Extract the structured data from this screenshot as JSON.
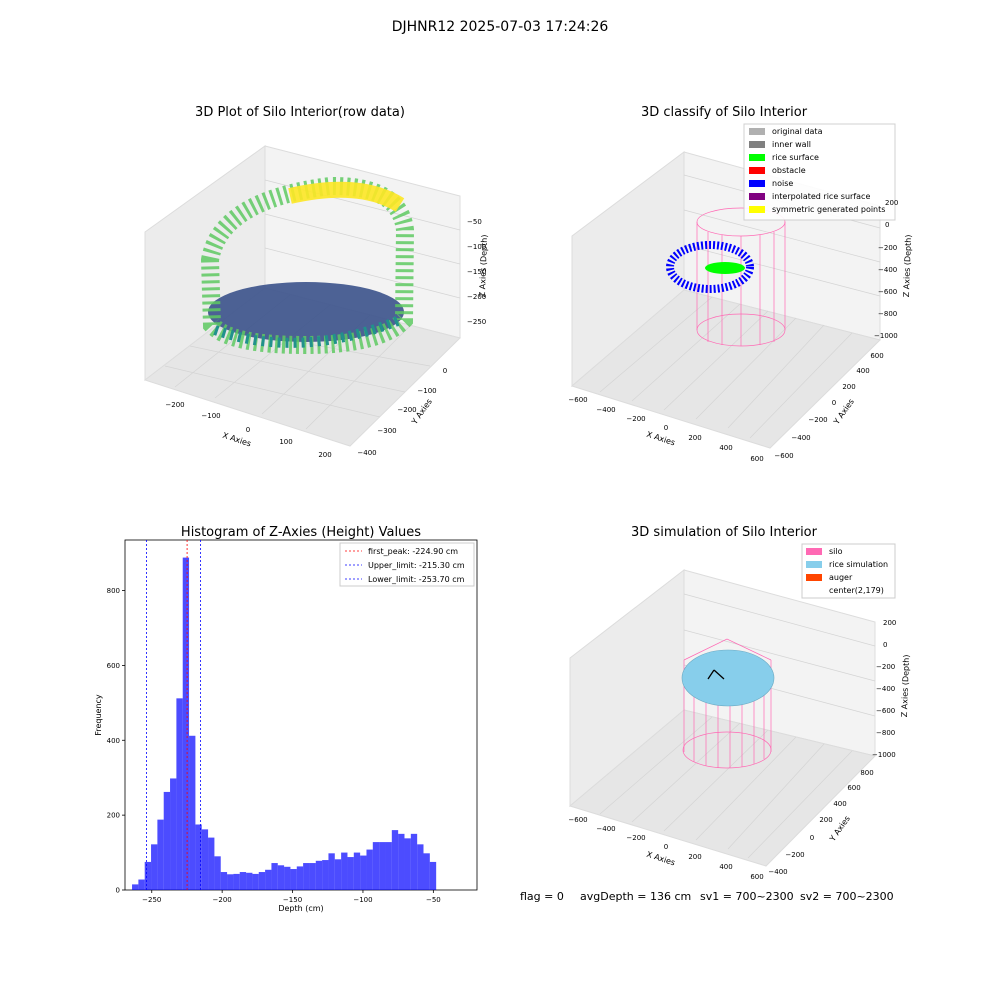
{
  "suptitle": "DJHNR12 2025-07-03 17:24:26",
  "status_line": {
    "flag": "flag = 0",
    "avg": "avgDepth = 136 cm",
    "sv1": "sv1 = 700~2300",
    "sv2": "sv2 = 700~2300"
  },
  "chart_data": [
    {
      "type": "scatter",
      "title": "3D Plot of Silo Interior(row data)",
      "xlabel": "X Axies",
      "ylabel": "Y Axies",
      "zlabel": "Z Axies (Depth)",
      "x_ticks": [
        "−200",
        "−100",
        "0",
        "100",
        "200"
      ],
      "y_ticks": [
        "−400",
        "−300",
        "−200",
        "−100",
        "0"
      ],
      "z_ticks": [
        "−50",
        "−100",
        "−150",
        "−200",
        "−250"
      ],
      "colormap": "viridis"
    },
    {
      "type": "scatter",
      "title": "3D classify of Silo Interior",
      "xlabel": "X Axies",
      "ylabel": "Y Axies",
      "zlabel": "Z Axies (Depth)",
      "x_ticks": [
        "−600",
        "−400",
        "−200",
        "0",
        "200",
        "400",
        "600"
      ],
      "y_ticks": [
        "−600",
        "−400",
        "−200",
        "0",
        "200",
        "400",
        "600"
      ],
      "z_ticks": [
        "200",
        "0",
        "−200",
        "−400",
        "−600",
        "−800",
        "−1000"
      ],
      "legend": [
        {
          "label": "original data",
          "color": "#b0b0b0"
        },
        {
          "label": "inner wall",
          "color": "#808080"
        },
        {
          "label": "rice surface",
          "color": "#00ff00"
        },
        {
          "label": "obstacle",
          "color": "#ff0000"
        },
        {
          "label": "noise",
          "color": "#0000ff"
        },
        {
          "label": "interpolated rice surface",
          "color": "#800080"
        },
        {
          "label": "symmetric generated points",
          "color": "#ffff00"
        }
      ]
    },
    {
      "type": "bar",
      "title": "Histogram of Z-Axies (Height) Values",
      "xlabel": "Depth (cm)",
      "ylabel": "Frequency",
      "xlim": [
        -269,
        -19
      ],
      "ylim": [
        0,
        935
      ],
      "x_ticks": [
        -250,
        -200,
        -150,
        -100,
        -50
      ],
      "x_tick_labels": [
        "−250",
        "−200",
        "−150",
        "−100",
        "−50"
      ],
      "y_ticks": [
        0,
        200,
        400,
        600,
        800
      ],
      "y_tick_labels": [
        "0",
        "200",
        "400",
        "600",
        "800"
      ],
      "bin_start": -264,
      "bin_width": 4.5,
      "bar_color": "#0000ff",
      "values": [
        15,
        28,
        75,
        122,
        188,
        262,
        298,
        512,
        888,
        412,
        175,
        162,
        140,
        90,
        48,
        42,
        43,
        48,
        46,
        43,
        48,
        54,
        72,
        66,
        62,
        56,
        63,
        72,
        72,
        78,
        80,
        98,
        82,
        100,
        88,
        100,
        92,
        108,
        128,
        128,
        128,
        160,
        150,
        138,
        150,
        122,
        98,
        75
      ],
      "vlines": [
        {
          "label": "first_peak: -224.90 cm",
          "x": -224.9,
          "color": "#ff0000"
        },
        {
          "label": "Upper_limit: -215.30 cm",
          "x": -215.3,
          "color": "#0000ff"
        },
        {
          "label": "Lower_limit: -253.70 cm",
          "x": -253.7,
          "color": "#0000ff"
        }
      ],
      "legend_position": "upper right"
    },
    {
      "type": "scatter",
      "title": "3D simulation of Silo Interior",
      "xlabel": "X Axies",
      "ylabel": "Y Axies",
      "zlabel": "Z Axies (Depth)",
      "x_ticks": [
        "−600",
        "−400",
        "−200",
        "0",
        "200",
        "400",
        "600"
      ],
      "y_ticks": [
        "−400",
        "−200",
        "0",
        "200",
        "400",
        "600",
        "800"
      ],
      "z_ticks": [
        "200",
        "0",
        "−200",
        "−400",
        "−600",
        "−800",
        "−1000"
      ],
      "legend": [
        {
          "label": "silo",
          "color": "#ff69b4"
        },
        {
          "label": "rice simulation",
          "color": "#87ceeb"
        },
        {
          "label": "auger",
          "color": "#ff4500"
        },
        {
          "label": "center(2,179)",
          "color": ""
        }
      ]
    }
  ]
}
